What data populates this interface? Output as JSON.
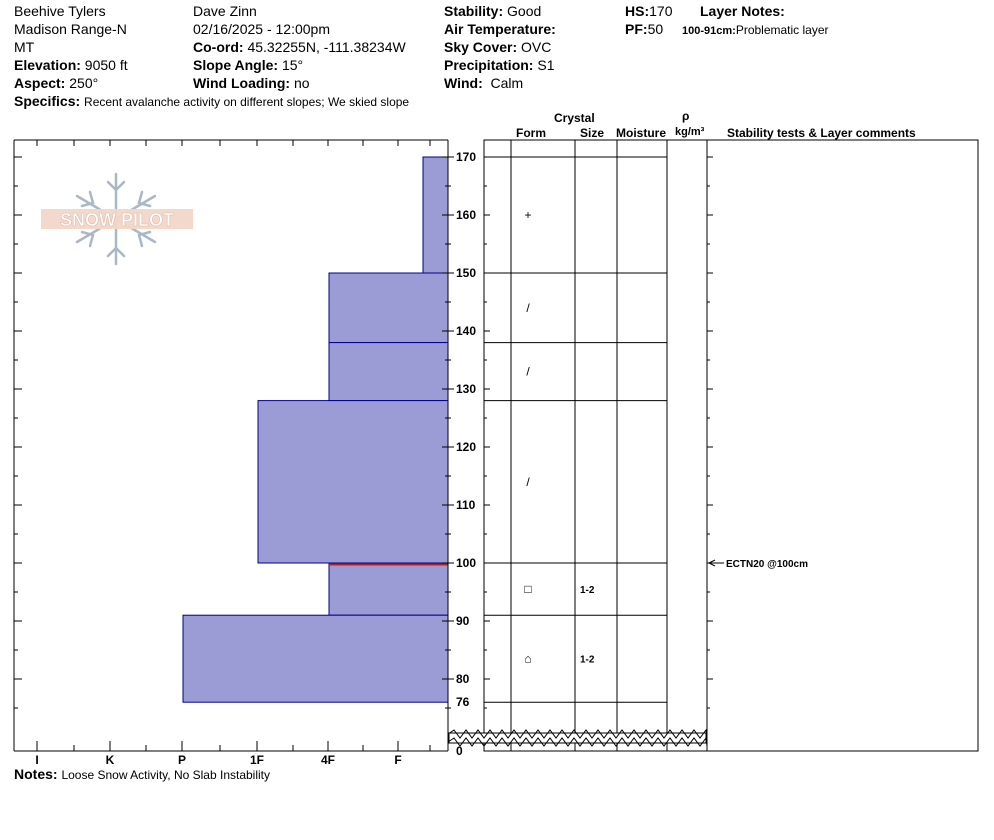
{
  "header": {
    "location": "Beehive Tylers",
    "range": "Madison Range-N",
    "state": "MT",
    "observer": "Dave Zinn",
    "datetime": "02/16/2025 - 12:00pm",
    "elevation_label": "Elevation:",
    "elevation_value": "9050 ft",
    "aspect_label": "Aspect:",
    "aspect_value": "250°",
    "coord_label": "Co-ord:",
    "coord_value": "45.32255N, -111.38234W",
    "slope_label": "Slope Angle:",
    "slope_value": "15°",
    "wind_loading_label": "Wind Loading:",
    "wind_loading_value": "no",
    "stability_label": "Stability:",
    "stability_value": "Good",
    "air_temp_label": "Air Temperature:",
    "sky_label": "Sky Cover:",
    "sky_value": "OVC",
    "precip_label": "Precipitation:",
    "precip_value": "S1",
    "wind_label": "Wind:",
    "wind_value": "Calm",
    "hs_label": "HS:",
    "hs_value": "170",
    "pf_label": "PF:",
    "pf_value": "50",
    "layer_notes_label": "Layer Notes:",
    "layer_note_range": "100-91cm:",
    "layer_note_text": "Problematic layer",
    "specifics_label": "Specifics:",
    "specifics_value": "Recent avalanche activity on different slopes; We skied slope"
  },
  "logo": {
    "text": "SNOW PILOT"
  },
  "columns": {
    "crystal": "Crystal",
    "form": "Form",
    "size": "Size",
    "moisture": "Moisture",
    "rho": "ρ",
    "density_unit": "kg/m³",
    "comments": "Stability tests & Layer comments"
  },
  "notes": {
    "label": "Notes:",
    "value": "Loose Snow Activity, No Slab Instability"
  },
  "colors": {
    "layer_fill": "#9b9bd6",
    "layer_stroke": "#00008b",
    "weak_layer": "#b22222"
  },
  "chart_data": {
    "type": "snow_profile",
    "y_unit": "cm",
    "hs": 170,
    "y_ticks": [
      170,
      160,
      150,
      140,
      130,
      120,
      110,
      100,
      90,
      80,
      76,
      0
    ],
    "hardness_scale": [
      "I",
      "K",
      "P",
      "1F",
      "4F",
      "F"
    ],
    "layers": [
      {
        "top": 170,
        "bottom": 150,
        "hardness": "F",
        "form": "+",
        "size": ""
      },
      {
        "top": 150,
        "bottom": 138,
        "hardness": "4F",
        "form": "/",
        "size": ""
      },
      {
        "top": 138,
        "bottom": 128,
        "hardness": "4F",
        "form": "/",
        "size": ""
      },
      {
        "top": 128,
        "bottom": 100,
        "hardness": "1F",
        "form": "/",
        "size": ""
      },
      {
        "top": 100,
        "bottom": 91,
        "hardness": "4F",
        "form": "□",
        "size": "1-2"
      },
      {
        "top": 91,
        "bottom": 76,
        "hardness": "P",
        "form": "⌂",
        "size": "1-2"
      }
    ],
    "weak_layer_depth": 100,
    "tests": [
      {
        "depth": 100,
        "label": "ECTN20 @100cm"
      }
    ]
  }
}
